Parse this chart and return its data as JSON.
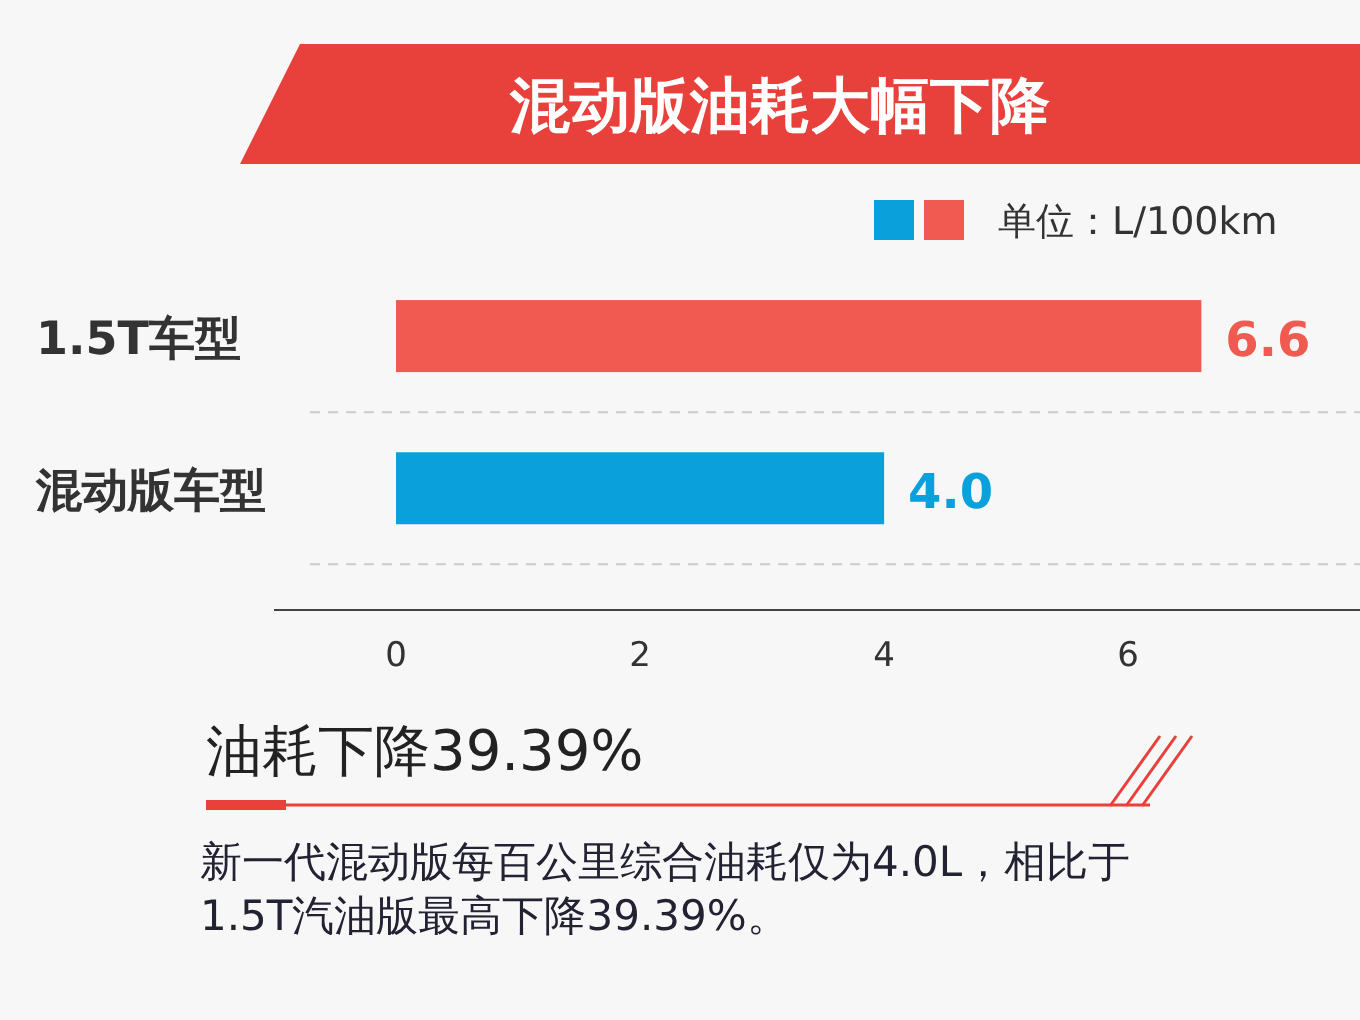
{
  "chart_data": {
    "type": "bar",
    "orientation": "horizontal",
    "title": "混动版油耗大幅下降",
    "subtitle": "单位：L/100km",
    "categories": [
      "1.5T车型",
      "混动版车型"
    ],
    "values": [
      6.6,
      4.0
    ],
    "colors": [
      "#f05a50",
      "#0aa0dc"
    ],
    "xlim": [
      -1,
      7.9
    ],
    "xticks": [
      0,
      2,
      4,
      6
    ],
    "value_labels": [
      "6.6",
      "4.0"
    ],
    "annotations": [
      "油耗下降39.39%",
      "新一代混动版每百公里综合油耗仅为4.0L，相比于1.5T汽油版最高下降39.39%。"
    ]
  }
}
